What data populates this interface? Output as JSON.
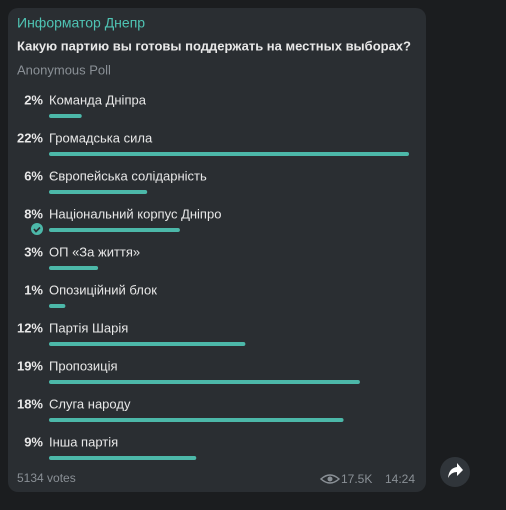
{
  "channel": "Информатор Днепр",
  "poll": {
    "question": "Какую партию вы готовы поддержать на местных выборах?",
    "kind": "Anonymous Poll",
    "options": [
      {
        "percent": {
          "value": 2,
          "label": "2%"
        },
        "text": "Команда Дніпра"
      },
      {
        "percent": {
          "value": 22,
          "label": "22%"
        },
        "text": "Громадська сила"
      },
      {
        "percent": {
          "value": 6,
          "label": "6%"
        },
        "text": "Європейська солідарність"
      },
      {
        "percent": {
          "value": 8,
          "label": "8%"
        },
        "text": "Національний корпус Дніпро",
        "chosen": true
      },
      {
        "percent": {
          "value": 3,
          "label": "3%"
        },
        "text": "ОП «За життя»"
      },
      {
        "percent": {
          "value": 1,
          "label": "1%"
        },
        "text": "Опозиційний блок"
      },
      {
        "percent": {
          "value": 12,
          "label": "12%"
        },
        "text": "Партія Шарія"
      },
      {
        "percent": {
          "value": 19,
          "label": "19%"
        },
        "text": "Пропозиція"
      },
      {
        "percent": {
          "value": 18,
          "label": "18%"
        },
        "text": "Слуга народу"
      },
      {
        "percent": {
          "value": 9,
          "label": "9%"
        },
        "text": "Інша партія"
      }
    ],
    "votes": "5134 votes"
  },
  "views": "17.5K",
  "time": "14:24"
}
